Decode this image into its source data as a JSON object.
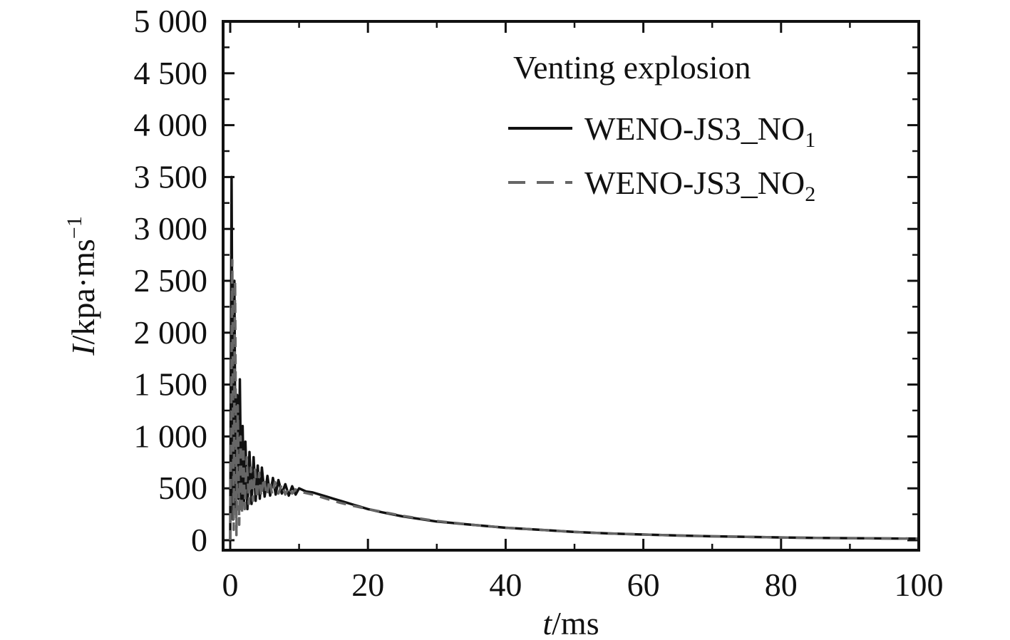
{
  "chart_data": {
    "type": "line",
    "title": "",
    "xlabel_var": "t",
    "xlabel_unit": "/ms",
    "ylabel_var": "I",
    "ylabel_unit": "/kpa·ms",
    "ylabel_exp": "−1",
    "xlim": [
      0,
      100
    ],
    "ylim": [
      0,
      5000
    ],
    "x_ticks": [
      0,
      20,
      40,
      60,
      80,
      100
    ],
    "y_ticks": [
      0,
      500,
      1000,
      1500,
      2000,
      2500,
      3000,
      3500,
      4000,
      4500,
      5000
    ],
    "x_tick_labels": [
      "0",
      "20",
      "40",
      "60",
      "80",
      "100"
    ],
    "y_tick_labels": [
      "0",
      "500",
      "1 000",
      "1 500",
      "2 000",
      "2 500",
      "3 000",
      "3 500",
      "4 000",
      "4 500",
      "5 000"
    ],
    "grid": false,
    "legend": {
      "title": "Venting explosion",
      "placement": "top-right"
    },
    "series": [
      {
        "name": "WENO-JS3_NO",
        "subscript": "1",
        "style": "solid",
        "color": "#111111",
        "x": [
          0,
          0.2,
          0.4,
          0.6,
          0.8,
          1.0,
          1.2,
          1.4,
          1.6,
          1.8,
          2.0,
          2.2,
          2.5,
          2.8,
          3.1,
          3.4,
          3.7,
          4.0,
          4.3,
          4.6,
          5.0,
          5.4,
          5.8,
          6.2,
          6.6,
          7.0,
          7.5,
          8.0,
          8.5,
          9.0,
          9.5,
          10,
          11,
          12,
          13,
          14,
          15,
          16,
          17,
          18,
          20,
          22,
          25,
          30,
          35,
          40,
          45,
          50,
          55,
          60,
          65,
          70,
          75,
          80,
          85,
          90,
          95,
          100
        ],
        "y": [
          0,
          3500,
          200,
          2500,
          300,
          1400,
          400,
          1550,
          300,
          1100,
          350,
          950,
          300,
          850,
          350,
          800,
          380,
          720,
          400,
          700,
          420,
          620,
          430,
          600,
          440,
          580,
          450,
          540,
          430,
          520,
          440,
          500,
          470,
          460,
          440,
          420,
          400,
          380,
          360,
          340,
          300,
          270,
          230,
          180,
          150,
          120,
          100,
          80,
          65,
          55,
          45,
          38,
          32,
          27,
          23,
          20,
          17,
          15
        ]
      },
      {
        "name": "WENO-JS3_NO",
        "subscript": "2",
        "style": "dashed",
        "color": "#666666",
        "x": [
          0,
          0.3,
          0.5,
          0.7,
          0.9,
          1.1,
          1.3,
          1.5,
          1.7,
          1.9,
          2.1,
          2.4,
          2.7,
          3.0,
          3.3,
          3.6,
          3.9,
          4.2,
          4.5,
          4.9,
          5.3,
          5.7,
          6.1,
          6.5,
          7.0,
          7.5,
          8.0,
          8.5,
          9.0,
          9.5,
          10,
          11,
          12,
          13,
          14,
          15,
          16,
          17,
          18,
          20,
          22,
          25,
          30,
          35,
          40,
          45,
          50,
          55,
          60,
          65,
          70,
          75,
          80,
          85,
          90,
          95,
          100
        ],
        "y": [
          0,
          2700,
          100,
          2500,
          50,
          1300,
          150,
          1000,
          250,
          900,
          300,
          800,
          350,
          700,
          380,
          680,
          400,
          650,
          420,
          600,
          430,
          580,
          440,
          560,
          450,
          540,
          440,
          510,
          450,
          490,
          470,
          455,
          440,
          420,
          400,
          380,
          360,
          345,
          330,
          300,
          275,
          235,
          185,
          150,
          120,
          100,
          80,
          65,
          55,
          45,
          38,
          32,
          27,
          23,
          20,
          17,
          15
        ]
      }
    ]
  }
}
